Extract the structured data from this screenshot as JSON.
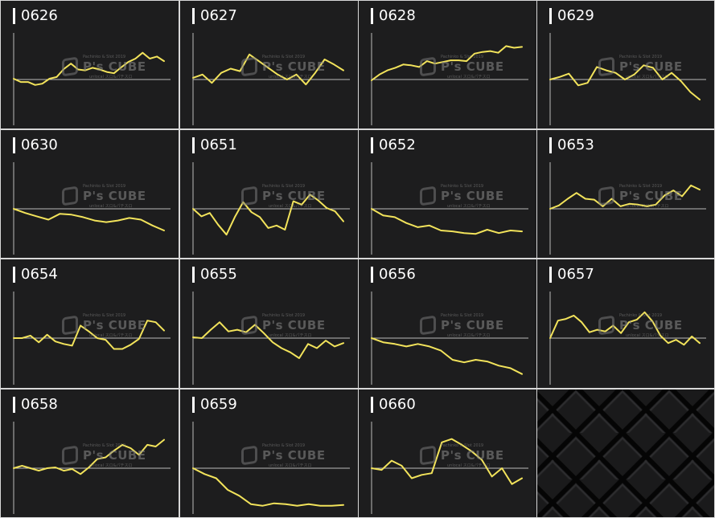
{
  "watermark": {
    "brand": "P's CUBE",
    "small_top": "Pachinko & Slot 2019",
    "small_bottom": "unlocal スロ&パチスロ"
  },
  "colors": {
    "line": "#f2e35b",
    "axis": "#bbbbbb",
    "background": "#1d1d1e",
    "label": "#ffffff"
  },
  "chart_data": [
    {
      "type": "line",
      "title": "0626",
      "ylim": [
        -1,
        1
      ],
      "baseline": 0,
      "values": [
        0.02,
        -0.06,
        -0.06,
        -0.13,
        -0.1,
        0.02,
        0.06,
        0.25,
        0.38,
        0.24,
        0.22,
        0.28,
        0.24,
        0.18,
        0.15,
        0.29,
        0.42,
        0.5,
        0.64,
        0.5,
        0.55,
        0.44
      ]
    },
    {
      "type": "line",
      "title": "0627",
      "ylim": [
        -1,
        1
      ],
      "baseline": 0,
      "values": [
        0.04,
        0.12,
        -0.08,
        0.16,
        0.26,
        0.2,
        0.6,
        0.44,
        0.28,
        0.12,
        0.0,
        0.12,
        -0.12,
        0.16,
        0.48,
        0.36,
        0.22
      ]
    },
    {
      "type": "line",
      "title": "0628",
      "ylim": [
        -1,
        1
      ],
      "baseline": 0,
      "values": [
        -0.02,
        0.12,
        0.22,
        0.28,
        0.36,
        0.34,
        0.3,
        0.44,
        0.38,
        0.42,
        0.46,
        0.46,
        0.44,
        0.62,
        0.66,
        0.68,
        0.64,
        0.8,
        0.76,
        0.78
      ]
    },
    {
      "type": "line",
      "title": "0629",
      "ylim": [
        -1,
        1
      ],
      "baseline": 0,
      "values": [
        0.0,
        0.06,
        0.14,
        -0.14,
        -0.08,
        0.3,
        0.22,
        0.16,
        0.0,
        0.12,
        0.34,
        0.28,
        0.0,
        0.16,
        -0.04,
        -0.3,
        -0.48
      ]
    },
    {
      "type": "line",
      "title": "0630",
      "ylim": [
        -1,
        1
      ],
      "baseline": 0,
      "values": [
        0.0,
        -0.1,
        -0.18,
        -0.26,
        -0.12,
        -0.14,
        -0.2,
        -0.28,
        -0.32,
        -0.28,
        -0.22,
        -0.26,
        -0.4,
        -0.52
      ]
    },
    {
      "type": "line",
      "title": "0651",
      "ylim": [
        -1,
        1
      ],
      "baseline": 0,
      "values": [
        0.0,
        -0.18,
        -0.1,
        -0.38,
        -0.62,
        -0.2,
        0.16,
        -0.08,
        -0.2,
        -0.46,
        -0.4,
        -0.5,
        0.18,
        0.1,
        0.34,
        0.2,
        0.02,
        -0.06,
        -0.3
      ]
    },
    {
      "type": "line",
      "title": "0652",
      "ylim": [
        -1,
        1
      ],
      "baseline": 0,
      "values": [
        0.0,
        -0.16,
        -0.2,
        -0.34,
        -0.44,
        -0.4,
        -0.52,
        -0.54,
        -0.58,
        -0.6,
        -0.5,
        -0.58,
        -0.52,
        -0.54
      ]
    },
    {
      "type": "line",
      "title": "0653",
      "ylim": [
        -1,
        1
      ],
      "baseline": 0,
      "values": [
        0.0,
        0.08,
        0.24,
        0.38,
        0.24,
        0.22,
        0.06,
        0.24,
        0.06,
        0.12,
        0.1,
        0.06,
        0.1,
        0.32,
        0.44,
        0.3,
        0.56,
        0.46
      ]
    },
    {
      "type": "line",
      "title": "0654",
      "ylim": [
        -1,
        1
      ],
      "baseline": 0,
      "values": [
        0.0,
        0.0,
        0.06,
        -0.1,
        0.08,
        -0.08,
        -0.14,
        -0.18,
        0.3,
        0.16,
        0.0,
        -0.04,
        -0.26,
        -0.26,
        -0.16,
        -0.02,
        0.42,
        0.38,
        0.18
      ]
    },
    {
      "type": "line",
      "title": "0655",
      "ylim": [
        -1,
        1
      ],
      "baseline": 0,
      "values": [
        0.02,
        0.0,
        0.2,
        0.38,
        0.16,
        0.2,
        0.14,
        0.32,
        0.12,
        -0.1,
        -0.24,
        -0.34,
        -0.48,
        -0.14,
        -0.24,
        -0.06,
        -0.2,
        -0.12
      ]
    },
    {
      "type": "line",
      "title": "0656",
      "ylim": [
        -1,
        1
      ],
      "baseline": 0,
      "values": [
        0.0,
        -0.1,
        -0.14,
        -0.2,
        -0.14,
        -0.2,
        -0.3,
        -0.52,
        -0.58,
        -0.52,
        -0.56,
        -0.66,
        -0.72,
        -0.86
      ]
    },
    {
      "type": "line",
      "title": "0657",
      "ylim": [
        -1,
        1
      ],
      "baseline": 0,
      "values": [
        0.0,
        0.42,
        0.46,
        0.54,
        0.38,
        0.14,
        0.2,
        0.16,
        0.3,
        0.12,
        0.38,
        0.44,
        0.62,
        0.4,
        0.06,
        -0.12,
        -0.04,
        -0.16,
        0.04,
        -0.12
      ]
    },
    {
      "type": "line",
      "title": "0658",
      "ylim": [
        -1,
        1
      ],
      "baseline": 0,
      "values": [
        0.0,
        0.06,
        0.0,
        -0.06,
        0.0,
        0.02,
        -0.06,
        -0.02,
        -0.14,
        0.02,
        0.22,
        0.26,
        0.42,
        0.56,
        0.48,
        0.32,
        0.56,
        0.52,
        0.68
      ]
    },
    {
      "type": "line",
      "title": "0659",
      "ylim": [
        -1,
        1
      ],
      "baseline": 0,
      "values": [
        0.0,
        -0.14,
        -0.24,
        -0.52,
        -0.66,
        -0.86,
        -0.9,
        -0.84,
        -0.86,
        -0.9,
        -0.86,
        -0.9,
        -0.9,
        -0.88
      ]
    },
    {
      "type": "line",
      "title": "0660",
      "ylim": [
        -1,
        1
      ],
      "baseline": 0,
      "values": [
        0.0,
        -0.04,
        0.18,
        0.06,
        -0.24,
        -0.16,
        -0.12,
        0.62,
        0.7,
        0.56,
        0.4,
        0.2,
        -0.2,
        0.0,
        -0.38,
        -0.24
      ]
    }
  ]
}
